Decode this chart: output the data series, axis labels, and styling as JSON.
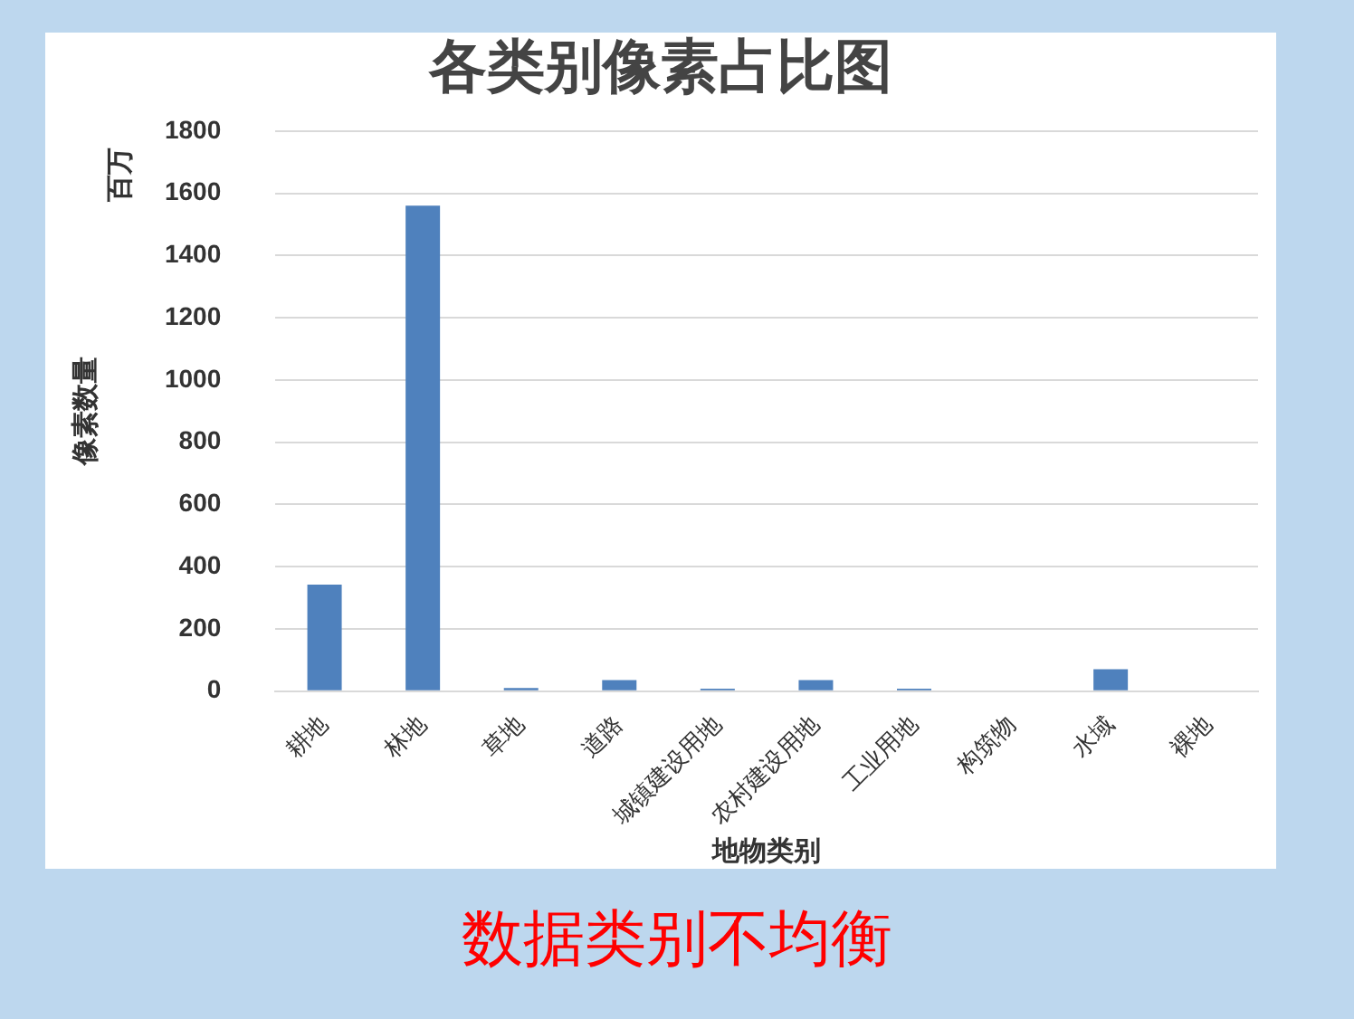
{
  "chart_data": {
    "type": "bar",
    "title": "各类别像素占比图",
    "xlabel": "地物类别",
    "ylabel": "像素数量",
    "categories": [
      "耕地",
      "林地",
      "草地",
      "道路",
      "城镇建设用地",
      "农村建设用地",
      "工业用地",
      "构筑物",
      "水域",
      "裸地"
    ],
    "values": [
      342,
      1560,
      10,
      35,
      8,
      35,
      8,
      0,
      70,
      0
    ],
    "color": "#4f81bd",
    "ylim": [
      0,
      1800
    ],
    "yticks": [
      0,
      200,
      400,
      600,
      800,
      1000,
      1200,
      1400,
      1600,
      1800
    ],
    "grid": "y",
    "annotations": [
      "百万",
      "数据类别不均衡"
    ]
  }
}
